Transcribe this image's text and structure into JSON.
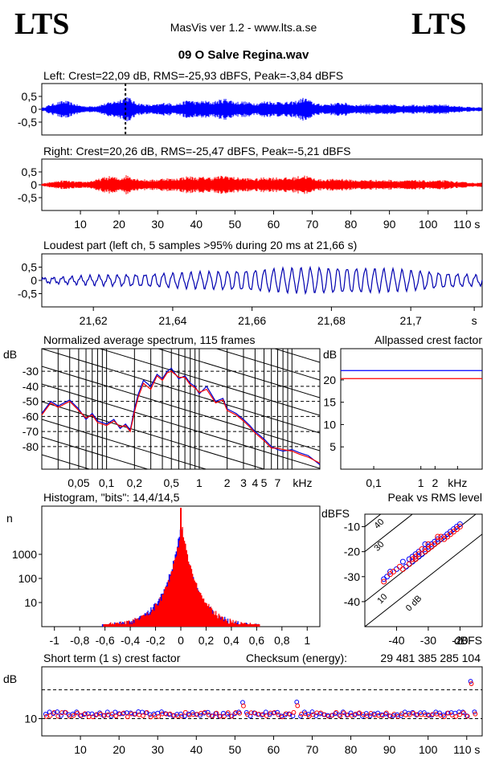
{
  "header": {
    "logo_left": "LTS",
    "logo_right": "LTS",
    "app_title": "MasVis ver 1.2 - www.lts.a.se",
    "file_title": "09 O  Salve Regina.wav"
  },
  "colors": {
    "left": "#0000ff",
    "right": "#ff0000",
    "loudest": "#0000b0",
    "spectrum_left": "#0000cc",
    "spectrum_right": "#ff0000"
  },
  "chart_data": [
    {
      "id": "left",
      "type": "line",
      "title": "Left: Crest=22,09 dB, RMS=-25,93 dBFS, Peak=-3,84 dBFS",
      "ylim": [
        -1,
        1
      ],
      "yticks": [
        "0,5",
        "0",
        "-0,5"
      ],
      "ytick_values": [
        0.5,
        0,
        -0.5
      ],
      "xlim": [
        0,
        114
      ],
      "marker_x": 21.66,
      "envelope_x": [
        0,
        2,
        4,
        6,
        8,
        10,
        12,
        14,
        16,
        18,
        20,
        22,
        24,
        26,
        28,
        30,
        32,
        34,
        36,
        38,
        40,
        42,
        44,
        46,
        48,
        50,
        52,
        54,
        56,
        58,
        60,
        62,
        64,
        66,
        68,
        70,
        72,
        74,
        76,
        78,
        80,
        82,
        84,
        86,
        88,
        90,
        92,
        94,
        96,
        98,
        100,
        102,
        104,
        106,
        108,
        110,
        112
      ],
      "envelope": [
        0.05,
        0.18,
        0.28,
        0.35,
        0.25,
        0.15,
        0.12,
        0.14,
        0.22,
        0.3,
        0.38,
        0.55,
        0.3,
        0.22,
        0.18,
        0.2,
        0.28,
        0.22,
        0.25,
        0.4,
        0.3,
        0.35,
        0.3,
        0.38,
        0.45,
        0.3,
        0.32,
        0.28,
        0.25,
        0.35,
        0.3,
        0.32,
        0.28,
        0.35,
        0.48,
        0.3,
        0.2,
        0.22,
        0.25,
        0.28,
        0.2,
        0.18,
        0.22,
        0.2,
        0.18,
        0.2,
        0.18,
        0.17,
        0.2,
        0.18,
        0.16,
        0.18,
        0.2,
        0.15,
        0.12,
        0.1,
        0.08
      ]
    },
    {
      "id": "right",
      "type": "line",
      "title": "Right: Crest=20,26 dB, RMS=-25,47 dBFS, Peak=-5,21 dBFS",
      "ylim": [
        -1,
        1
      ],
      "yticks": [
        "0,5",
        "0",
        "-0,5"
      ],
      "ytick_values": [
        0.5,
        0,
        -0.5
      ],
      "xlim": [
        0,
        114
      ],
      "xticks": [
        "10",
        "20",
        "30",
        "40",
        "50",
        "60",
        "70",
        "80",
        "90",
        "100",
        "110 s"
      ],
      "xtick_values": [
        10,
        20,
        30,
        40,
        50,
        60,
        70,
        80,
        90,
        100,
        110
      ],
      "envelope_x": [
        0,
        2,
        4,
        6,
        8,
        10,
        12,
        14,
        16,
        18,
        20,
        22,
        24,
        26,
        28,
        30,
        32,
        34,
        36,
        38,
        40,
        42,
        44,
        46,
        48,
        50,
        52,
        54,
        56,
        58,
        60,
        62,
        64,
        66,
        68,
        70,
        72,
        74,
        76,
        78,
        80,
        82,
        84,
        86,
        88,
        90,
        92,
        94,
        96,
        98,
        100,
        102,
        104,
        106,
        108,
        110,
        112
      ],
      "envelope": [
        0.04,
        0.1,
        0.15,
        0.18,
        0.14,
        0.12,
        0.14,
        0.2,
        0.3,
        0.35,
        0.25,
        0.4,
        0.28,
        0.22,
        0.2,
        0.22,
        0.28,
        0.24,
        0.3,
        0.35,
        0.3,
        0.32,
        0.3,
        0.35,
        0.38,
        0.3,
        0.28,
        0.26,
        0.25,
        0.32,
        0.3,
        0.3,
        0.28,
        0.33,
        0.4,
        0.28,
        0.22,
        0.22,
        0.24,
        0.25,
        0.2,
        0.18,
        0.2,
        0.2,
        0.18,
        0.2,
        0.18,
        0.17,
        0.19,
        0.18,
        0.16,
        0.17,
        0.18,
        0.15,
        0.12,
        0.1,
        0.08
      ]
    },
    {
      "id": "loudest",
      "type": "line",
      "title": "Loudest part (left  ch, 5 samples >95% during 20 ms at 21,66 s)",
      "ylim": [
        -1,
        1
      ],
      "yticks": [
        "0,5",
        "0",
        "-0,5"
      ],
      "ytick_values": [
        0.5,
        0,
        -0.5
      ],
      "xlim": [
        21.607,
        21.718
      ],
      "xticks": [
        "21,62",
        "21,64",
        "21,66",
        "21,68",
        "21,7",
        "s"
      ],
      "xtick_values": [
        21.62,
        21.64,
        21.66,
        21.68,
        21.7,
        21.716
      ]
    },
    {
      "id": "spectrum",
      "type": "line",
      "title": "Normalized average spectrum, 115 frames",
      "ylabel": "dB",
      "ylim": [
        -95,
        -15
      ],
      "yticks": [
        "-30",
        "-40",
        "-50",
        "-60",
        "-70",
        "-80"
      ],
      "ytick_values": [
        -30,
        -40,
        -50,
        -60,
        -70,
        -80
      ],
      "xlim_khz": [
        0.02,
        20
      ],
      "xticks": [
        "0,05",
        "0,1",
        "0,2",
        "0,5",
        "1",
        "2",
        "3",
        "4",
        "5",
        "7",
        "kHz"
      ],
      "xtick_values": [
        0.05,
        0.1,
        0.2,
        0.5,
        1,
        2,
        3,
        4,
        5,
        7,
        13
      ],
      "series": [
        {
          "name": "left",
          "x": [
            0.02,
            0.025,
            0.03,
            0.04,
            0.05,
            0.06,
            0.07,
            0.08,
            0.1,
            0.12,
            0.14,
            0.16,
            0.18,
            0.2,
            0.22,
            0.25,
            0.3,
            0.35,
            0.4,
            0.45,
            0.5,
            0.6,
            0.7,
            0.8,
            0.9,
            1,
            1.2,
            1.5,
            1.8,
            2,
            2.5,
            3,
            3.5,
            4,
            5,
            6,
            7,
            8,
            10,
            12,
            15,
            20
          ],
          "y": [
            -58,
            -50,
            -53,
            -49,
            -55,
            -62,
            -58,
            -63,
            -65,
            -62,
            -68,
            -65,
            -69,
            -55,
            -45,
            -36,
            -40,
            -32,
            -35,
            -30,
            -28,
            -35,
            -33,
            -38,
            -40,
            -45,
            -40,
            -50,
            -48,
            -55,
            -58,
            -62,
            -66,
            -70,
            -75,
            -80,
            -82,
            -83,
            -82,
            -84,
            -86,
            -92
          ]
        },
        {
          "name": "right",
          "x": [
            0.02,
            0.025,
            0.03,
            0.04,
            0.05,
            0.06,
            0.07,
            0.08,
            0.1,
            0.12,
            0.14,
            0.16,
            0.18,
            0.2,
            0.22,
            0.25,
            0.3,
            0.35,
            0.4,
            0.45,
            0.5,
            0.6,
            0.7,
            0.8,
            0.9,
            1,
            1.2,
            1.5,
            1.8,
            2,
            2.5,
            3,
            3.5,
            4,
            5,
            6,
            7,
            8,
            10,
            12,
            15,
            20
          ],
          "y": [
            -59,
            -51,
            -54,
            -50,
            -56,
            -61,
            -59,
            -64,
            -66,
            -63,
            -67,
            -66,
            -70,
            -57,
            -47,
            -38,
            -42,
            -33,
            -36,
            -31,
            -30,
            -34,
            -34,
            -39,
            -41,
            -44,
            -42,
            -51,
            -49,
            -56,
            -59,
            -63,
            -67,
            -71,
            -76,
            -81,
            -81,
            -82,
            -83,
            -85,
            -87,
            -91
          ]
        }
      ]
    },
    {
      "id": "allpass",
      "type": "line",
      "title": "Allpassed crest factor",
      "ylabel": "dB",
      "ylim": [
        0,
        27
      ],
      "yticks": [
        "20",
        "15",
        "10",
        "5"
      ],
      "ytick_values": [
        20,
        15,
        10,
        5
      ],
      "xticks": [
        "0,1",
        "1",
        "2",
        "kHz"
      ],
      "xtick_values": [
        0.1,
        1,
        2,
        6
      ],
      "series": [
        {
          "name": "left",
          "value": 22.1
        },
        {
          "name": "right",
          "value": 20.3
        }
      ]
    },
    {
      "id": "histogram",
      "type": "bar",
      "title": "Histogram, \"bits\": 14,4/14,5",
      "ylabel": "n",
      "yticks": [
        "1000",
        "100",
        "10"
      ],
      "ytick_values": [
        1000,
        100,
        10
      ],
      "xlim": [
        -1.1,
        1.1
      ],
      "xticks": [
        "-1",
        "-0,8",
        "-0,6",
        "-0,4",
        "-0,2",
        "0",
        "0,2",
        "0,4",
        "0,6",
        "0,8",
        "1"
      ],
      "xtick_values": [
        -1,
        -0.8,
        -0.6,
        -0.4,
        -0.2,
        0,
        0.2,
        0.4,
        0.6,
        0.8,
        1
      ]
    },
    {
      "id": "peakrms",
      "type": "scatter",
      "title": "Peak vs RMS level",
      "ylabel": "dBFS",
      "xlabel": "dBFS",
      "xlim": [
        -50,
        -13
      ],
      "ylim": [
        -50,
        -5
      ],
      "yticks": [
        "-10",
        "-20",
        "-30",
        "-40"
      ],
      "ytick_values": [
        -10,
        -20,
        -30,
        -40
      ],
      "xticks": [
        "-40",
        "-30",
        "-20"
      ],
      "xtick_values": [
        -40,
        -30,
        -20
      ],
      "diagonal_labels": [
        "40",
        "30",
        "10",
        "0 dB"
      ],
      "diagonal_values": [
        40,
        30,
        10,
        0
      ],
      "points_left": [
        [
          -44,
          -31
        ],
        [
          -43,
          -30
        ],
        [
          -42,
          -28
        ],
        [
          -40,
          -27
        ],
        [
          -38,
          -24
        ],
        [
          -37,
          -26
        ],
        [
          -36,
          -23
        ],
        [
          -35,
          -22
        ],
        [
          -34,
          -21
        ],
        [
          -33,
          -20
        ],
        [
          -32,
          -21
        ],
        [
          -31,
          -19
        ],
        [
          -30,
          -18
        ],
        [
          -29,
          -17
        ],
        [
          -28,
          -16
        ],
        [
          -27,
          -15
        ],
        [
          -26,
          -15
        ],
        [
          -25,
          -14
        ],
        [
          -24,
          -13
        ],
        [
          -23,
          -12
        ],
        [
          -22,
          -11
        ],
        [
          -21,
          -10
        ],
        [
          -20,
          -9
        ],
        [
          -33,
          -22
        ],
        [
          -35,
          -24
        ],
        [
          -29,
          -18
        ],
        [
          -31,
          -17
        ]
      ],
      "points_right": [
        [
          -44,
          -32
        ],
        [
          -42,
          -29
        ],
        [
          -41,
          -28
        ],
        [
          -39,
          -26
        ],
        [
          -38,
          -27
        ],
        [
          -36,
          -25
        ],
        [
          -35,
          -23
        ],
        [
          -34,
          -22
        ],
        [
          -33,
          -21
        ],
        [
          -32,
          -19
        ],
        [
          -31,
          -20
        ],
        [
          -30,
          -19
        ],
        [
          -29,
          -18
        ],
        [
          -28,
          -17
        ],
        [
          -27,
          -16
        ],
        [
          -26,
          -14
        ],
        [
          -25,
          -15
        ],
        [
          -24,
          -14
        ],
        [
          -23,
          -13
        ],
        [
          -22,
          -12
        ],
        [
          -21,
          -11
        ],
        [
          -20,
          -10
        ],
        [
          -34,
          -23
        ],
        [
          -30,
          -17
        ],
        [
          -27,
          -14
        ]
      ]
    },
    {
      "id": "shortterm",
      "type": "scatter",
      "title": "Short term (1 s) crest factor",
      "checksum_label": "Checksum (energy):",
      "checksum_value": "29 481 385 285 104",
      "ylabel": "dB",
      "ylim": [
        4,
        28
      ],
      "yticks": [
        "10"
      ],
      "ytick_values": [
        10
      ],
      "dashed_values": [
        10,
        20
      ],
      "xlim": [
        0,
        114
      ],
      "xticks": [
        "10",
        "20",
        "30",
        "40",
        "50",
        "60",
        "70",
        "80",
        "90",
        "100",
        "110 s"
      ],
      "xtick_values": [
        10,
        20,
        30,
        40,
        50,
        60,
        70,
        80,
        90,
        100,
        110
      ]
    }
  ]
}
